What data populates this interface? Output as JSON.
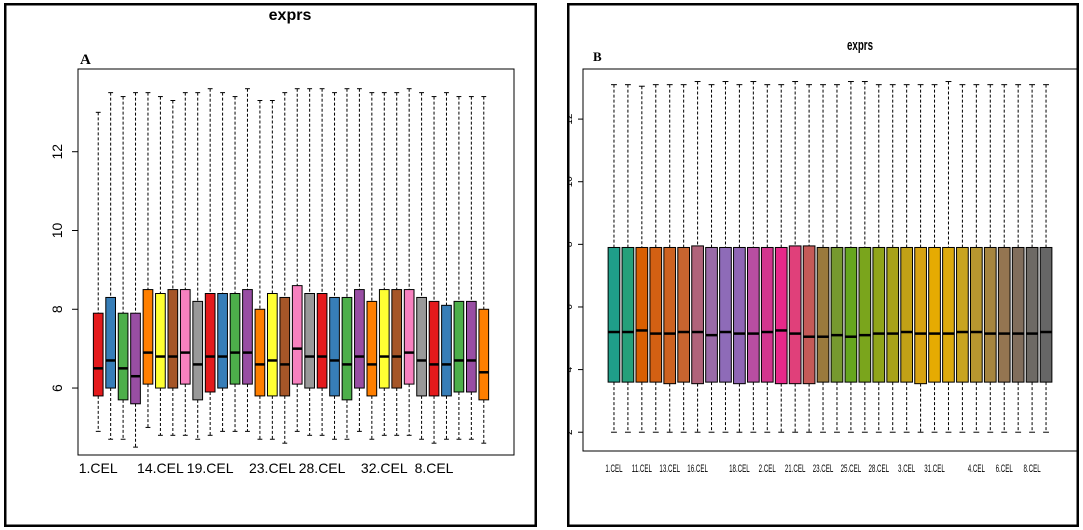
{
  "panels": [
    {
      "letter": "A",
      "title": "exprs",
      "y_ticks": [
        6,
        8,
        10,
        12
      ],
      "x_labels": [
        "1.CEL",
        "14.CEL",
        "19.CEL",
        "23.CEL",
        "28.CEL",
        "32.CEL",
        "8.CEL"
      ],
      "border_color": "#000000"
    },
    {
      "letter": "B",
      "title": "exprs",
      "y_ticks": [
        2,
        4,
        6,
        8,
        10,
        12
      ],
      "x_labels": [
        "1.CEL",
        "11.CEL",
        "13.CEL",
        "16.CEL",
        "18.CEL",
        "2.CEL",
        "21.CEL",
        "23.CEL",
        "25.CEL",
        "28.CEL",
        "3.CEL",
        "31.CEL",
        "4.CEL",
        "6.CEL",
        "8.CEL"
      ],
      "border_color": "#000000"
    }
  ],
  "chart_data": [
    {
      "type": "box",
      "title": "exprs",
      "panel": "A",
      "xlabel": "",
      "ylabel": "",
      "ylim": [
        4.3,
        14.1
      ],
      "grid": false,
      "legend": "none",
      "categories_shown": [
        "1.CEL",
        "14.CEL",
        "19.CEL",
        "23.CEL",
        "28.CEL",
        "32.CEL",
        "8.CEL"
      ],
      "boxes": [
        {
          "q1": 5.8,
          "median": 6.5,
          "q3": 7.9,
          "whisker_low": 4.9,
          "whisker_high": 13.0,
          "color": "#e41a1c"
        },
        {
          "q1": 6.0,
          "median": 6.7,
          "q3": 8.3,
          "whisker_low": 4.7,
          "whisker_high": 13.5,
          "color": "#377eb8"
        },
        {
          "q1": 5.7,
          "median": 6.5,
          "q3": 7.9,
          "whisker_low": 4.7,
          "whisker_high": 13.4,
          "color": "#4daf4a"
        },
        {
          "q1": 5.6,
          "median": 6.3,
          "q3": 7.9,
          "whisker_low": 4.5,
          "whisker_high": 13.5,
          "color": "#984ea3"
        },
        {
          "q1": 6.1,
          "median": 6.9,
          "q3": 8.5,
          "whisker_low": 5.0,
          "whisker_high": 13.5,
          "color": "#ff7f00"
        },
        {
          "q1": 6.0,
          "median": 6.8,
          "q3": 8.4,
          "whisker_low": 4.8,
          "whisker_high": 13.4,
          "color": "#ffff33"
        },
        {
          "q1": 6.0,
          "median": 6.8,
          "q3": 8.5,
          "whisker_low": 4.8,
          "whisker_high": 13.3,
          "color": "#a65628"
        },
        {
          "q1": 6.1,
          "median": 6.9,
          "q3": 8.5,
          "whisker_low": 4.8,
          "whisker_high": 13.5,
          "color": "#f781bf"
        },
        {
          "q1": 5.7,
          "median": 6.6,
          "q3": 8.2,
          "whisker_low": 4.7,
          "whisker_high": 13.5,
          "color": "#999999"
        },
        {
          "q1": 5.9,
          "median": 6.8,
          "q3": 8.4,
          "whisker_low": 4.8,
          "whisker_high": 13.6,
          "color": "#e41a1c"
        },
        {
          "q1": 6.0,
          "median": 6.8,
          "q3": 8.4,
          "whisker_low": 4.9,
          "whisker_high": 13.5,
          "color": "#377eb8"
        },
        {
          "q1": 6.1,
          "median": 6.9,
          "q3": 8.4,
          "whisker_low": 4.9,
          "whisker_high": 13.4,
          "color": "#4daf4a"
        },
        {
          "q1": 6.1,
          "median": 6.9,
          "q3": 8.5,
          "whisker_low": 4.9,
          "whisker_high": 13.6,
          "color": "#984ea3"
        },
        {
          "q1": 5.8,
          "median": 6.6,
          "q3": 8.0,
          "whisker_low": 4.7,
          "whisker_high": 13.3,
          "color": "#ff7f00"
        },
        {
          "q1": 5.8,
          "median": 6.7,
          "q3": 8.4,
          "whisker_low": 4.7,
          "whisker_high": 13.3,
          "color": "#ffff33"
        },
        {
          "q1": 5.8,
          "median": 6.6,
          "q3": 8.3,
          "whisker_low": 4.6,
          "whisker_high": 13.5,
          "color": "#a65628"
        },
        {
          "q1": 6.1,
          "median": 7.0,
          "q3": 8.6,
          "whisker_low": 4.9,
          "whisker_high": 13.6,
          "color": "#f781bf"
        },
        {
          "q1": 6.0,
          "median": 6.8,
          "q3": 8.4,
          "whisker_low": 4.8,
          "whisker_high": 13.6,
          "color": "#999999"
        },
        {
          "q1": 6.0,
          "median": 6.8,
          "q3": 8.4,
          "whisker_low": 4.8,
          "whisker_high": 13.6,
          "color": "#e41a1c"
        },
        {
          "q1": 5.8,
          "median": 6.7,
          "q3": 8.3,
          "whisker_low": 4.7,
          "whisker_high": 13.5,
          "color": "#377eb8"
        },
        {
          "q1": 5.7,
          "median": 6.6,
          "q3": 8.3,
          "whisker_low": 4.7,
          "whisker_high": 13.6,
          "color": "#4daf4a"
        },
        {
          "q1": 6.0,
          "median": 6.8,
          "q3": 8.5,
          "whisker_low": 4.9,
          "whisker_high": 13.6,
          "color": "#984ea3"
        },
        {
          "q1": 5.8,
          "median": 6.6,
          "q3": 8.2,
          "whisker_low": 4.7,
          "whisker_high": 13.5,
          "color": "#ff7f00"
        },
        {
          "q1": 6.0,
          "median": 6.8,
          "q3": 8.5,
          "whisker_low": 4.8,
          "whisker_high": 13.5,
          "color": "#ffff33"
        },
        {
          "q1": 6.0,
          "median": 6.8,
          "q3": 8.5,
          "whisker_low": 4.8,
          "whisker_high": 13.5,
          "color": "#a65628"
        },
        {
          "q1": 6.1,
          "median": 6.9,
          "q3": 8.5,
          "whisker_low": 4.8,
          "whisker_high": 13.6,
          "color": "#f781bf"
        },
        {
          "q1": 5.8,
          "median": 6.7,
          "q3": 8.3,
          "whisker_low": 4.7,
          "whisker_high": 13.5,
          "color": "#999999"
        },
        {
          "q1": 5.8,
          "median": 6.6,
          "q3": 8.2,
          "whisker_low": 4.6,
          "whisker_high": 13.4,
          "color": "#e41a1c"
        },
        {
          "q1": 5.8,
          "median": 6.6,
          "q3": 8.1,
          "whisker_low": 4.7,
          "whisker_high": 13.5,
          "color": "#377eb8"
        },
        {
          "q1": 5.9,
          "median": 6.7,
          "q3": 8.2,
          "whisker_low": 4.7,
          "whisker_high": 13.4,
          "color": "#4daf4a"
        },
        {
          "q1": 5.9,
          "median": 6.7,
          "q3": 8.2,
          "whisker_low": 4.7,
          "whisker_high": 13.4,
          "color": "#984ea3"
        },
        {
          "q1": 5.7,
          "median": 6.4,
          "q3": 8.0,
          "whisker_low": 4.6,
          "whisker_high": 13.4,
          "color": "#ff7f00"
        }
      ]
    },
    {
      "type": "box",
      "title": "exprs",
      "panel": "B",
      "xlabel": "",
      "ylabel": "",
      "ylim": [
        1.4,
        13.6
      ],
      "grid": false,
      "legend": "none",
      "categories_shown": [
        "1.CEL",
        "11.CEL",
        "13.CEL",
        "16.CEL",
        "18.CEL",
        "2.CEL",
        "21.CEL",
        "23.CEL",
        "25.CEL",
        "28.CEL",
        "3.CEL",
        "31.CEL",
        "4.CEL",
        "6.CEL",
        "8.CEL"
      ],
      "boxes": [
        {
          "q1": 3.6,
          "median": 5.2,
          "q3": 7.9,
          "whisker_low": 2.0,
          "whisker_high": 13.1,
          "color": "#1f9e89"
        },
        {
          "q1": 3.6,
          "median": 5.2,
          "q3": 7.9,
          "whisker_low": 2.0,
          "whisker_high": 13.1,
          "color": "#26a07a"
        },
        {
          "q1": 3.6,
          "median": 5.25,
          "q3": 7.9,
          "whisker_low": 2.0,
          "whisker_high": 13.05,
          "color": "#d95f02"
        },
        {
          "q1": 3.6,
          "median": 5.15,
          "q3": 7.9,
          "whisker_low": 2.0,
          "whisker_high": 13.1,
          "color": "#d36013"
        },
        {
          "q1": 3.55,
          "median": 5.15,
          "q3": 7.9,
          "whisker_low": 2.0,
          "whisker_high": 13.1,
          "color": "#cd6221"
        },
        {
          "q1": 3.6,
          "median": 5.2,
          "q3": 7.9,
          "whisker_low": 2.0,
          "whisker_high": 13.1,
          "color": "#c7642f"
        },
        {
          "q1": 3.55,
          "median": 5.2,
          "q3": 7.95,
          "whisker_low": 2.0,
          "whisker_high": 13.2,
          "color": "#b0637a"
        },
        {
          "q1": 3.6,
          "median": 5.1,
          "q3": 7.9,
          "whisker_low": 2.0,
          "whisker_high": 13.1,
          "color": "#9a6aa8"
        },
        {
          "q1": 3.6,
          "median": 5.2,
          "q3": 7.9,
          "whisker_low": 2.0,
          "whisker_high": 13.2,
          "color": "#8e6bb8"
        },
        {
          "q1": 3.55,
          "median": 5.15,
          "q3": 7.9,
          "whisker_low": 2.0,
          "whisker_high": 13.1,
          "color": "#9067b5"
        },
        {
          "q1": 3.6,
          "median": 5.15,
          "q3": 7.9,
          "whisker_low": 2.0,
          "whisker_high": 13.2,
          "color": "#b84ea2"
        },
        {
          "q1": 3.6,
          "median": 5.2,
          "q3": 7.9,
          "whisker_low": 2.0,
          "whisker_high": 13.1,
          "color": "#d2368e"
        },
        {
          "q1": 3.55,
          "median": 5.25,
          "q3": 7.9,
          "whisker_low": 2.0,
          "whisker_high": 13.1,
          "color": "#e7298a"
        },
        {
          "q1": 3.55,
          "median": 5.15,
          "q3": 7.95,
          "whisker_low": 2.0,
          "whisker_high": 13.2,
          "color": "#e0407a"
        },
        {
          "q1": 3.55,
          "median": 5.05,
          "q3": 7.95,
          "whisker_low": 2.0,
          "whisker_high": 13.1,
          "color": "#c55a57"
        },
        {
          "q1": 3.6,
          "median": 5.05,
          "q3": 7.9,
          "whisker_low": 2.0,
          "whisker_high": 13.1,
          "color": "#9a7a3c"
        },
        {
          "q1": 3.6,
          "median": 5.1,
          "q3": 7.9,
          "whisker_low": 2.0,
          "whisker_high": 13.1,
          "color": "#76992f"
        },
        {
          "q1": 3.6,
          "median": 5.05,
          "q3": 7.9,
          "whisker_low": 2.0,
          "whisker_high": 13.2,
          "color": "#66a61e"
        },
        {
          "q1": 3.6,
          "median": 5.1,
          "q3": 7.9,
          "whisker_low": 2.0,
          "whisker_high": 13.2,
          "color": "#7aa51c"
        },
        {
          "q1": 3.6,
          "median": 5.15,
          "q3": 7.9,
          "whisker_low": 2.0,
          "whisker_high": 13.1,
          "color": "#90a41a"
        },
        {
          "q1": 3.6,
          "median": 5.15,
          "q3": 7.9,
          "whisker_low": 2.0,
          "whisker_high": 13.1,
          "color": "#a8a218"
        },
        {
          "q1": 3.6,
          "median": 5.2,
          "q3": 7.9,
          "whisker_low": 2.0,
          "whisker_high": 13.1,
          "color": "#c2a116"
        },
        {
          "q1": 3.55,
          "median": 5.15,
          "q3": 7.9,
          "whisker_low": 2.0,
          "whisker_high": 13.1,
          "color": "#d8a312"
        },
        {
          "q1": 3.6,
          "median": 5.15,
          "q3": 7.9,
          "whisker_low": 2.0,
          "whisker_high": 13.1,
          "color": "#e6ab02"
        },
        {
          "q1": 3.6,
          "median": 5.15,
          "q3": 7.9,
          "whisker_low": 2.0,
          "whisker_high": 13.2,
          "color": "#dcaa0e"
        },
        {
          "q1": 3.6,
          "median": 5.2,
          "q3": 7.9,
          "whisker_low": 2.0,
          "whisker_high": 13.1,
          "color": "#c9a420"
        },
        {
          "q1": 3.6,
          "median": 5.2,
          "q3": 7.9,
          "whisker_low": 2.0,
          "whisker_high": 13.1,
          "color": "#b8972f"
        },
        {
          "q1": 3.6,
          "median": 5.15,
          "q3": 7.9,
          "whisker_low": 2.0,
          "whisker_high": 13.1,
          "color": "#a6853f"
        },
        {
          "q1": 3.6,
          "median": 5.15,
          "q3": 7.9,
          "whisker_low": 2.0,
          "whisker_high": 13.1,
          "color": "#947551"
        },
        {
          "q1": 3.6,
          "median": 5.15,
          "q3": 7.9,
          "whisker_low": 2.0,
          "whisker_high": 13.1,
          "color": "#816e5c"
        },
        {
          "q1": 3.6,
          "median": 5.15,
          "q3": 7.9,
          "whisker_low": 2.0,
          "whisker_high": 13.1,
          "color": "#6e6a65"
        },
        {
          "q1": 3.6,
          "median": 5.2,
          "q3": 7.9,
          "whisker_low": 2.0,
          "whisker_high": 13.1,
          "color": "#666666"
        }
      ]
    }
  ]
}
